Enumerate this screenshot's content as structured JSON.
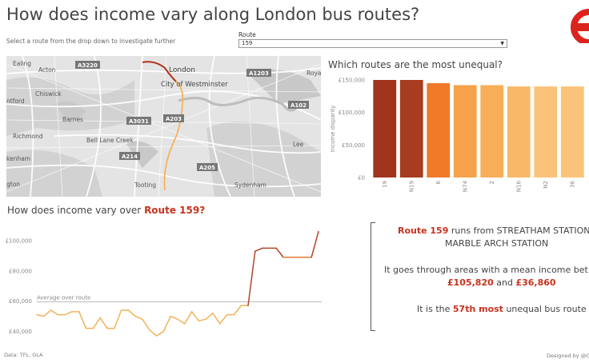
{
  "header": {
    "title": "How does income vary along London bus routes?",
    "subtitle": "Select a route from the drop down to investigate further"
  },
  "route_filter": {
    "label": "Route",
    "value": "159"
  },
  "map": {
    "labels": [
      "Ealing",
      "Acton",
      "Chiswick",
      "ntford",
      "Barnes",
      "Richmond",
      "Bell Lane Creek",
      "kenham",
      "gton",
      "Tooting",
      "London",
      "City of Westminster",
      "Sydenham",
      "Lee",
      "Roya"
    ],
    "road_labels": [
      "A3220",
      "A1203",
      "A102",
      "A3031",
      "A203",
      "A214",
      "A205"
    ]
  },
  "bar_section": {
    "title": "Which routes are the most unequal?"
  },
  "line_section": {
    "title_prefix": "How does income vary over",
    "title_route": "Route  159?",
    "average_label": "Average over route"
  },
  "info": {
    "route_name": "Route 159",
    "runs_text": " runs from STREATHAM STATION",
    "line2": "MARBLE ARCH STATION",
    "line3": "It goes through areas with a  mean income bet",
    "income_high": "£105,820",
    "and_text": " and ",
    "income_low": "£36,860",
    "line5_prefix": "It is the ",
    "rank": "57th most",
    "line5_suffix": " unequal bus route"
  },
  "footer": {
    "left": "Data: TFL, GLA",
    "right": "Designed by @C"
  },
  "chart_data": [
    {
      "type": "bar",
      "title": "Which routes are the most unequal?",
      "ylabel": "Income disparity",
      "categories": [
        "19",
        "N19",
        "6",
        "N74",
        "2",
        "N16",
        "N2",
        "36"
      ],
      "values": [
        150000,
        150000,
        145000,
        142000,
        142000,
        140000,
        140000,
        140000
      ],
      "colors": [
        "#a0341c",
        "#a83c1e",
        "#f07a28",
        "#f6a24a",
        "#f8ae58",
        "#f9b868",
        "#fbc37a",
        "#fbc37a"
      ],
      "ylim": [
        0,
        150000
      ],
      "yticks": [
        0,
        50000,
        100000,
        150000
      ],
      "ytick_labels": [
        "£0",
        "£50,000",
        "£100,000",
        "£150,000"
      ]
    },
    {
      "type": "line",
      "title": "How does income vary over Route  159?",
      "values": [
        51000,
        50000,
        54000,
        51000,
        51000,
        53000,
        53000,
        42000,
        42000,
        49000,
        42000,
        42000,
        54000,
        54000,
        50000,
        48000,
        41000,
        37000,
        40000,
        50000,
        48000,
        45000,
        53000,
        47000,
        48000,
        52000,
        45000,
        51000,
        51000,
        57000,
        57000,
        93000,
        95000,
        95000,
        95000,
        89000,
        89000,
        89000,
        89000,
        89000,
        106000
      ],
      "average": 59500,
      "ylim": [
        36000,
        110000
      ],
      "yticks": [
        40000,
        60000,
        80000,
        100000
      ],
      "ytick_labels": [
        "£40,000",
        "£60,000",
        "£80,000",
        "£100,000"
      ],
      "colors": {
        "low": "#f2b25a",
        "mid": "#e27a35",
        "high": "#b0452a"
      }
    }
  ]
}
